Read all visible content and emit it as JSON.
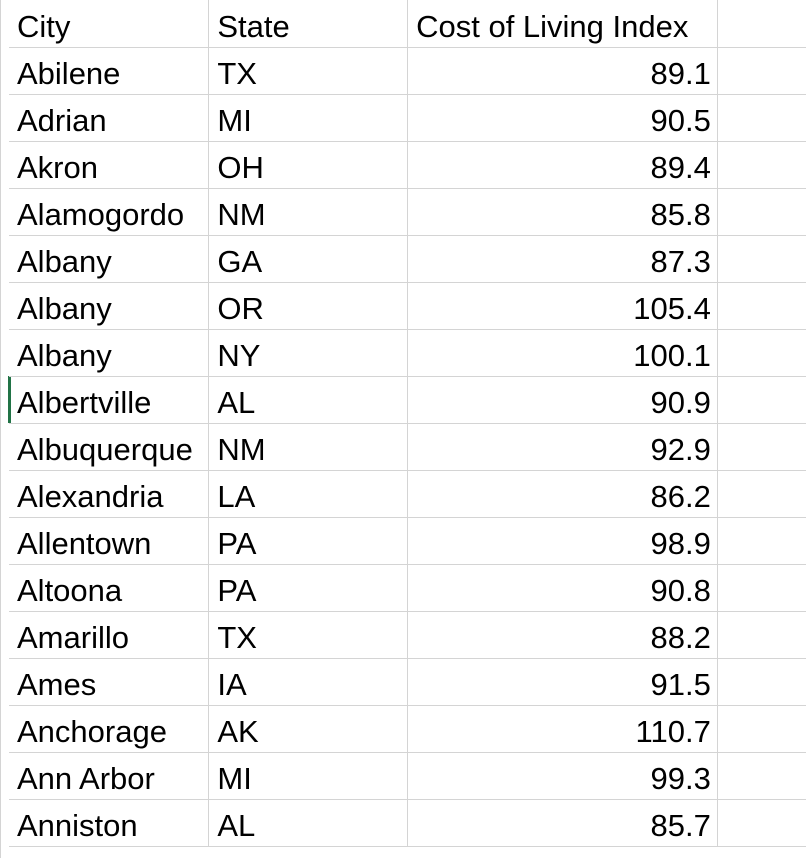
{
  "headers": {
    "city": "City",
    "state": "State",
    "index": "Cost of Living Index"
  },
  "rows": [
    {
      "city": "Abilene",
      "state": "TX",
      "index": "89.1"
    },
    {
      "city": "Adrian",
      "state": "MI",
      "index": "90.5"
    },
    {
      "city": "Akron",
      "state": "OH",
      "index": "89.4"
    },
    {
      "city": "Alamogordo",
      "state": "NM",
      "index": "85.8"
    },
    {
      "city": "Albany",
      "state": "GA",
      "index": "87.3"
    },
    {
      "city": "Albany",
      "state": "OR",
      "index": "105.4"
    },
    {
      "city": "Albany",
      "state": "NY",
      "index": "100.1"
    },
    {
      "city": "Albertville",
      "state": "AL",
      "index": "90.9"
    },
    {
      "city": "Albuquerque",
      "state": "NM",
      "index": "92.9"
    },
    {
      "city": "Alexandria",
      "state": "LA",
      "index": "86.2"
    },
    {
      "city": "Allentown",
      "state": "PA",
      "index": "98.9"
    },
    {
      "city": "Altoona",
      "state": "PA",
      "index": "90.8"
    },
    {
      "city": "Amarillo",
      "state": "TX",
      "index": "88.2"
    },
    {
      "city": "Ames",
      "state": "IA",
      "index": "91.5"
    },
    {
      "city": "Anchorage",
      "state": "AK",
      "index": "110.7"
    },
    {
      "city": "Ann Arbor",
      "state": "MI",
      "index": "99.3"
    },
    {
      "city": "Anniston",
      "state": "AL",
      "index": "85.7"
    }
  ],
  "colors": {
    "gridline": "#d4d4d4",
    "active_row_marker": "#217346",
    "text": "#000000"
  }
}
